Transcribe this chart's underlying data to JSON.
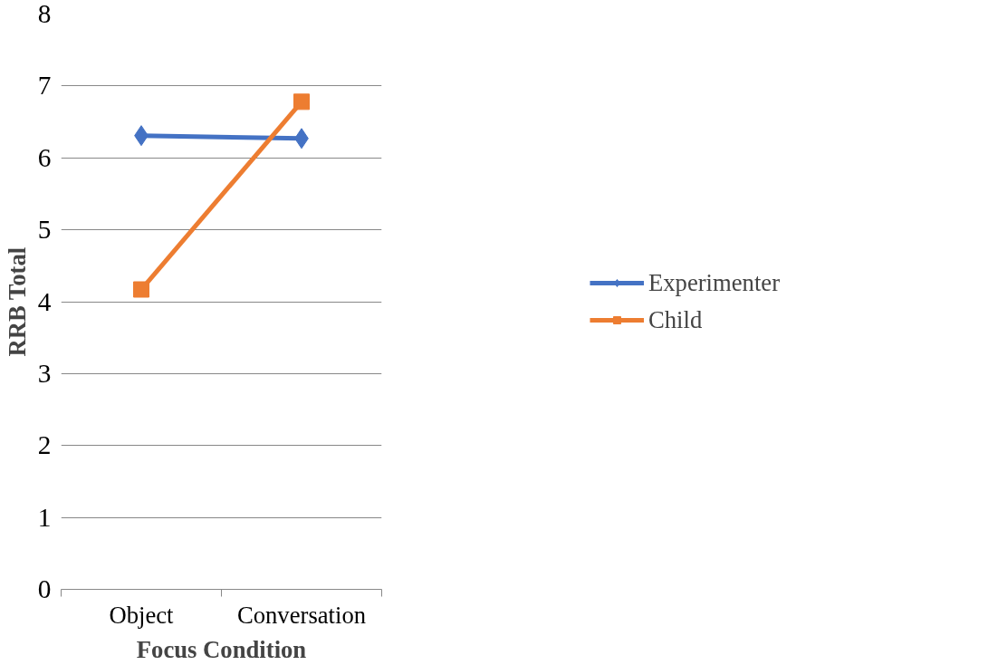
{
  "chart_data": {
    "type": "line",
    "xlabel": "Focus Condition",
    "ylabel": "RRB Total",
    "categories": [
      "Object",
      "Conversation"
    ],
    "series": [
      {
        "name": "Experimenter",
        "color": "#4472c4",
        "marker": "diamond",
        "values": [
          6.31,
          6.27
        ]
      },
      {
        "name": "Child",
        "color": "#ed7d31",
        "marker": "square",
        "values": [
          4.17,
          6.78
        ]
      }
    ],
    "ylim": [
      0,
      8
    ],
    "yticks": [
      0,
      1,
      2,
      3,
      4,
      5,
      6,
      7,
      8
    ],
    "grid": "y",
    "legend": "right",
    "line_style": "solid"
  }
}
